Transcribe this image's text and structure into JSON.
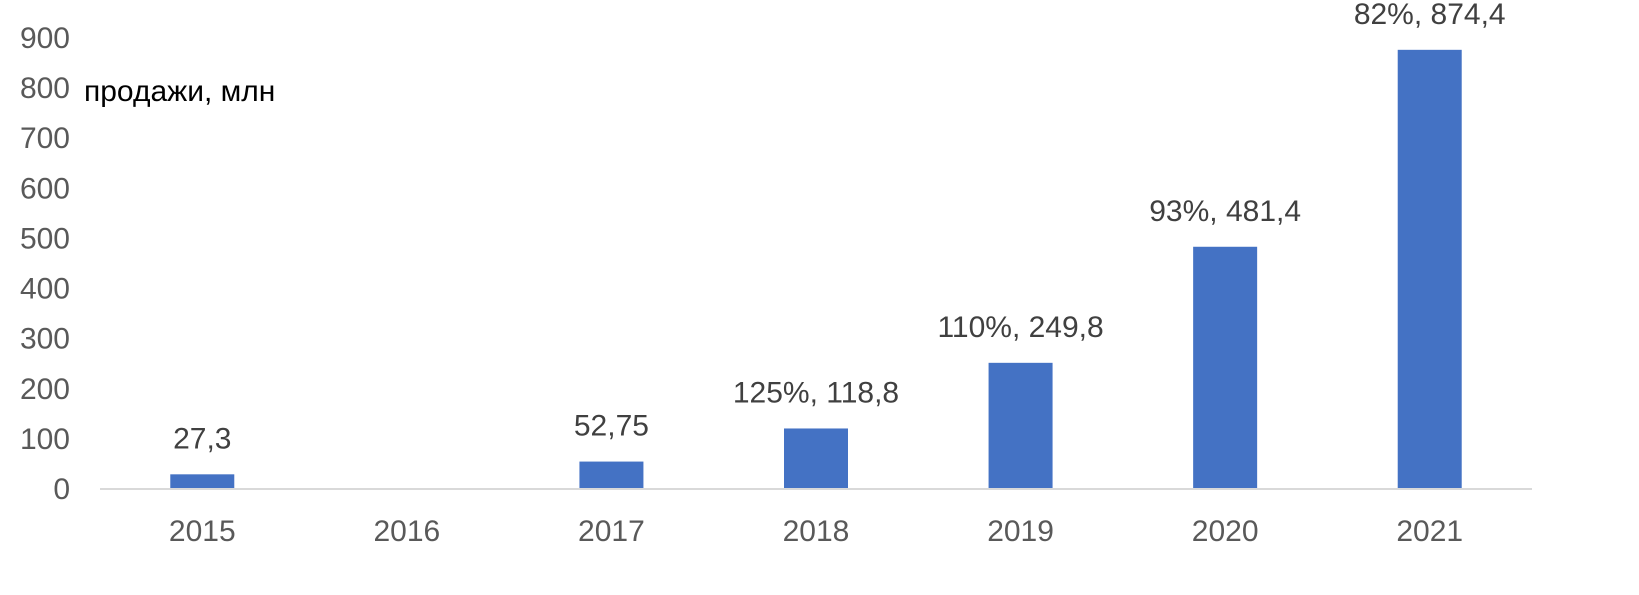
{
  "chart_data": {
    "type": "bar",
    "categories": [
      "2015",
      "2016",
      "2017",
      "2018",
      "2019",
      "2020",
      "2021"
    ],
    "values": [
      27.3,
      null,
      52.75,
      118.8,
      249.8,
      481.4,
      874.4
    ],
    "data_labels": [
      "27,3",
      "",
      "52,75",
      "125%, 118,8",
      "110%, 249,8",
      "93%, 481,4",
      "82%, 874,4"
    ],
    "title": "",
    "xlabel": "",
    "ylabel": "",
    "unit_label": "продажи, млн",
    "ylim": [
      0,
      900
    ],
    "yticks": [
      0,
      100,
      200,
      300,
      400,
      500,
      600,
      700,
      800,
      900
    ],
    "ytick_labels": [
      "0",
      "100",
      "200",
      "300",
      "400",
      "500",
      "600",
      "700",
      "800",
      "900"
    ],
    "grid": false,
    "legend": "none",
    "colors": {
      "bar": "#4472C4",
      "axis": "#D9D9D9",
      "tick_text": "#595959",
      "label_text": "#404040"
    }
  }
}
